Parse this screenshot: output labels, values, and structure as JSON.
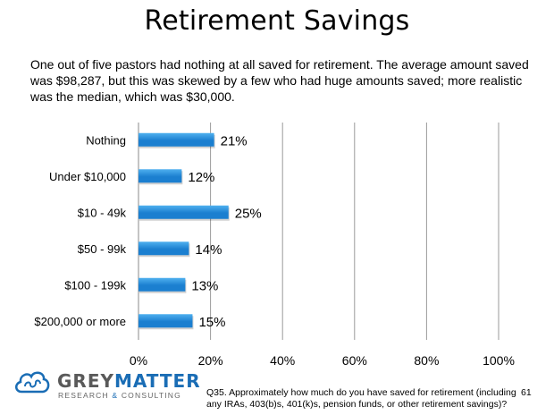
{
  "title": "Retirement Savings",
  "subtitle": "One out of five pastors had nothing at all saved for retirement.  The average amount saved was $98,287, but this was skewed by a few who had huge amounts saved; more realistic was the median, which was $30,000.",
  "footer": {
    "question": "Q35. Approximately how much do you have saved for retirement (including any IRAs, 403(b)s, 401(k)s, pension funds, or other retirement savings)?",
    "page_number": "61"
  },
  "logo": {
    "name_part1": "GREY",
    "name_part2": "MATTER",
    "tagline_part1": "RESEARCH",
    "tagline_amp": "&",
    "tagline_part2": "CONSULTING",
    "icon": "cloud-brain-icon"
  },
  "colors": {
    "bar": "#1b7fd0",
    "bar_highlight": "#4fb0ef",
    "grid": "#9a9a9a",
    "brand": "#1a6db5"
  },
  "chart_data": {
    "type": "bar",
    "orientation": "horizontal",
    "categories": [
      "Nothing",
      "Under $10,000",
      "$10 - 49k",
      "$50 - 99k",
      "$100 - 199k",
      "$200,000 or more"
    ],
    "values": [
      21,
      12,
      25,
      14,
      13,
      15
    ],
    "data_labels": [
      "21%",
      "12%",
      "25%",
      "14%",
      "13%",
      "15%"
    ],
    "xlim": [
      0,
      100
    ],
    "x_ticks": [
      0,
      20,
      40,
      60,
      80,
      100
    ],
    "x_tick_labels": [
      "0%",
      "20%",
      "40%",
      "60%",
      "80%",
      "100%"
    ],
    "grid": true,
    "legend": "none"
  }
}
